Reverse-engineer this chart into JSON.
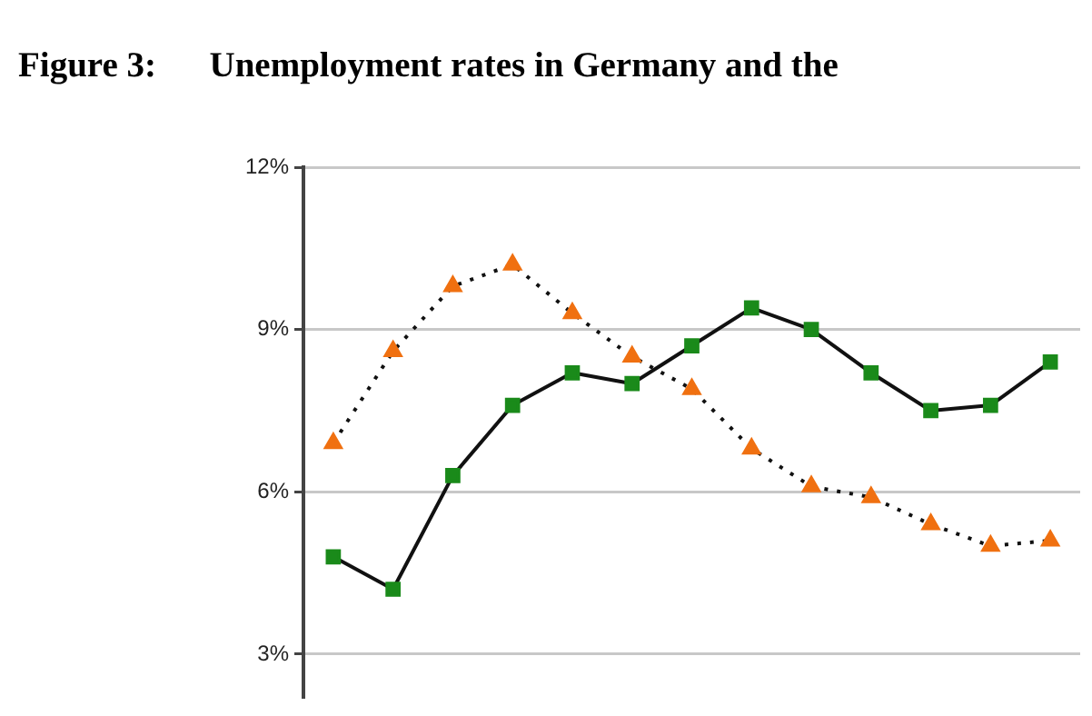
{
  "chart_data": {
    "type": "line",
    "title": "Figure 3:      Unemployment rates in Germany and the",
    "categories": [
      null,
      null,
      null,
      null,
      null,
      null,
      null,
      null,
      null,
      null,
      null,
      null,
      null
    ],
    "series": [
      {
        "color": "#1a8a1a",
        "marker": "square",
        "line_style": "solid",
        "values": [
          4.8,
          4.2,
          6.3,
          7.6,
          8.2,
          8.0,
          8.7,
          9.4,
          9.0,
          8.2,
          7.5,
          7.6,
          8.4
        ]
      },
      {
        "color": "#f07010",
        "marker": "triangle",
        "line_style": "dotted",
        "values": [
          6.9,
          8.6,
          9.8,
          10.2,
          9.3,
          8.5,
          7.9,
          6.8,
          6.1,
          5.9,
          5.4,
          5.0,
          5.1
        ]
      }
    ],
    "ylim": [
      2.2,
      12
    ],
    "yticks": [
      {
        "value": 3,
        "label": "3%"
      },
      {
        "value": 6,
        "label": "6%"
      },
      {
        "value": 9,
        "label": "9%"
      },
      {
        "value": 12,
        "label": "12%"
      }
    ],
    "grid": "y",
    "legend": false
  }
}
